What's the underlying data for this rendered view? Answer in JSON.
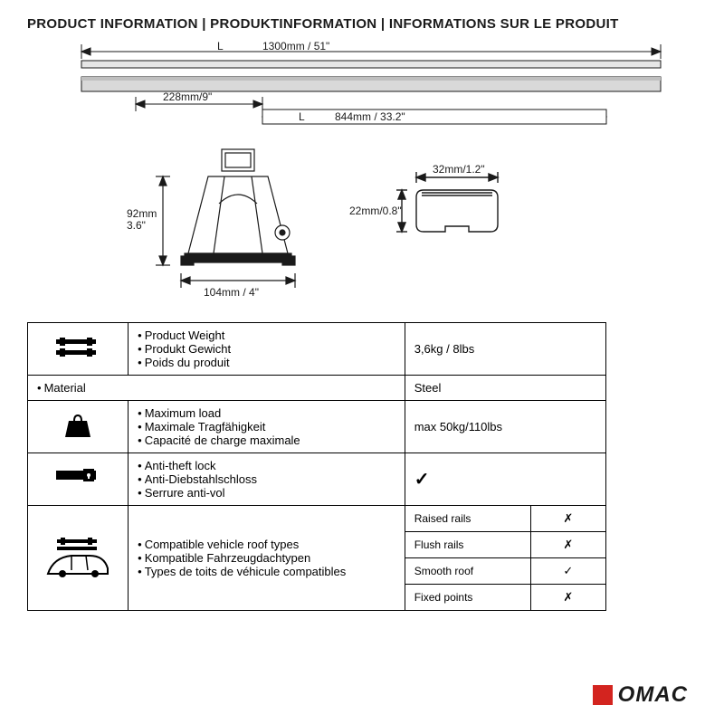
{
  "title": "PRODUCT INFORMATION | PRODUKTINFORMATION | INFORMATIONS SUR LE PRODUIT",
  "diagram": {
    "top_length_L": "L",
    "top_length": "1300mm / 51\"",
    "offset": "228mm/9\"",
    "inner_L": "L",
    "inner_length": "844mm / 33.2\"",
    "foot_height": "92mm\n3.6\"",
    "foot_width": "104mm / 4\"",
    "profile_width": "32mm/1.2\"",
    "profile_height": "22mm/0.8\"",
    "stroke": "#1a1a1a",
    "fill_light": "#ffffff",
    "fill_gray": "#c8c8c8",
    "font_size": 12
  },
  "spec": {
    "weight": {
      "labels": [
        "Product Weight",
        "Produkt Gewicht",
        "Poids du produit"
      ],
      "value": "3,6kg / 8lbs"
    },
    "material": {
      "labels": [
        "Material"
      ],
      "value": "Steel"
    },
    "maxload": {
      "labels": [
        "Maximum load",
        "Maximale Tragfähigkeit",
        "Capacité de charge maximale"
      ],
      "value": "max 50kg/110lbs"
    },
    "antitheft": {
      "labels": [
        "Anti-theft lock",
        "Anti-Diebstahlschloss",
        "Serrure anti-vol"
      ],
      "value": "✓"
    },
    "compat": {
      "labels": [
        "Compatible vehicle roof types",
        "Kompatible Fahrzeugdachtypen",
        "Types de toits de véhicule compatibles"
      ],
      "rows": [
        {
          "name": "Raised rails",
          "mark": "✗"
        },
        {
          "name": "Flush rails",
          "mark": "✗"
        },
        {
          "name": "Smooth roof",
          "mark": "✓"
        },
        {
          "name": "Fixed points",
          "mark": "✗"
        }
      ]
    }
  },
  "logo": {
    "text": "OMAC",
    "square_color": "#d3241f",
    "text_color": "#1a1a1a"
  }
}
